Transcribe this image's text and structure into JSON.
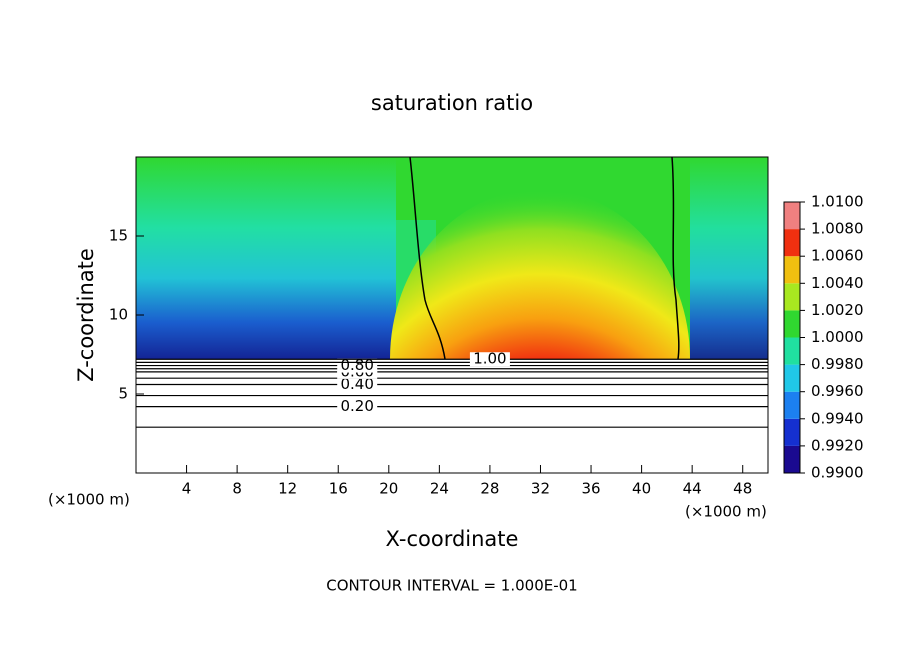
{
  "chart_data": {
    "type": "contour",
    "title": "saturation ratio",
    "x_label": "X-coordinate",
    "y_label": "Z-coordinate",
    "x_unit_left": "(×1000 m)",
    "x_unit_right": "(×1000 m)",
    "footer": "CONTOUR INTERVAL = 1.000E-01",
    "xlim": [
      0,
      50
    ],
    "ylim": [
      0,
      20
    ],
    "xticks": [
      4,
      8,
      12,
      16,
      20,
      24,
      28,
      32,
      36,
      40,
      44,
      48
    ],
    "yticks": [
      5,
      10,
      15
    ],
    "contours": [
      {
        "level": 0.1,
        "z": 2.9
      },
      {
        "level": 0.2,
        "z": 4.2,
        "label": "0.20"
      },
      {
        "level": 0.3,
        "z": 4.9
      },
      {
        "level": 0.4,
        "z": 5.6,
        "label": "0.40"
      },
      {
        "level": 0.5,
        "z": 6.0
      },
      {
        "level": 0.6,
        "z": 6.4,
        "label": "0.60"
      },
      {
        "level": 0.7,
        "z": 6.6
      },
      {
        "level": 0.8,
        "z": 6.8,
        "label": "0.80"
      },
      {
        "level": 0.9,
        "z": 7.0
      },
      {
        "level": 1.0,
        "z": 7.2,
        "label": "1.00"
      }
    ],
    "colorbar": {
      "lim": [
        0.99,
        1.01
      ],
      "ticks": [
        {
          "value": 0.99,
          "label": "0.9900"
        },
        {
          "value": 0.992,
          "label": "0.9920"
        },
        {
          "value": 0.994,
          "label": "0.9940"
        },
        {
          "value": 0.996,
          "label": "0.9960"
        },
        {
          "value": 0.998,
          "label": "0.9980"
        },
        {
          "value": 1.0,
          "label": "1.0000"
        },
        {
          "value": 1.002,
          "label": "1.0020"
        },
        {
          "value": 1.004,
          "label": "1.0040"
        },
        {
          "value": 1.006,
          "label": "1.0060"
        },
        {
          "value": 1.008,
          "label": "1.0080"
        },
        {
          "value": 1.01,
          "label": "1.0100"
        }
      ],
      "colors": [
        "#1a0a90",
        "#1530d0",
        "#1c80f0",
        "#20c8e8",
        "#20e0a0",
        "#30d830",
        "#a8e820",
        "#f0c010",
        "#f03010",
        "#f08080"
      ]
    }
  }
}
